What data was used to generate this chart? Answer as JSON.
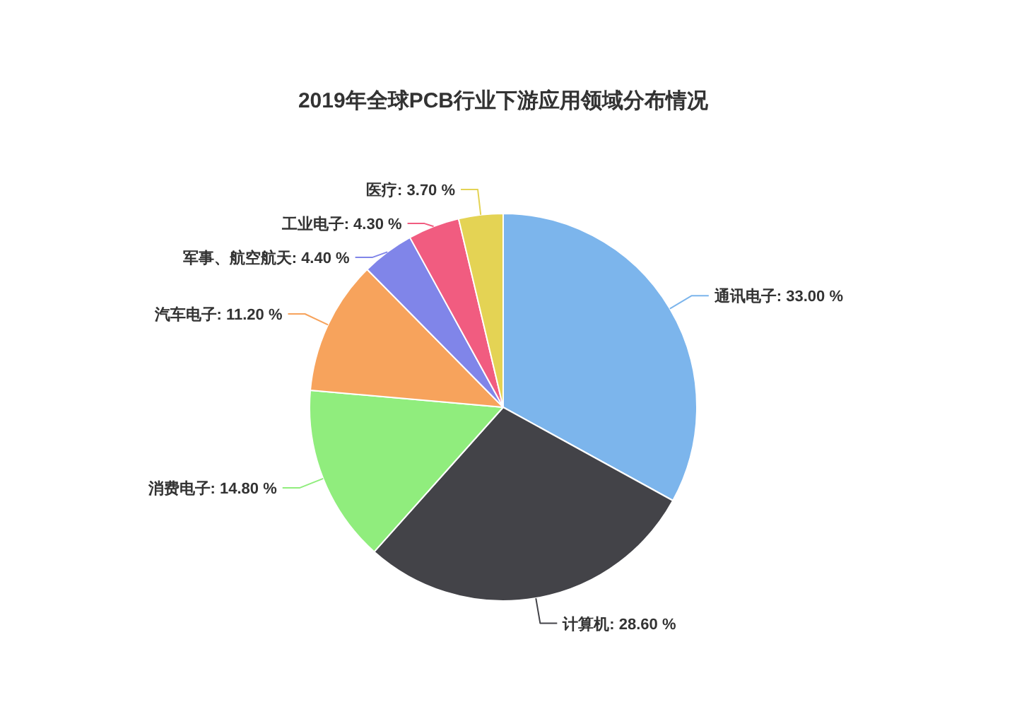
{
  "chart_data": {
    "type": "pie",
    "title": "2019年全球PCB行业下游应用领域分布情况",
    "categories": [
      "通讯电子",
      "计算机",
      "消费电子",
      "汽车电子",
      "军事、航空航天",
      "工业电子",
      "医疗"
    ],
    "values": [
      33.0,
      28.6,
      14.8,
      11.2,
      4.4,
      4.3,
      3.7
    ],
    "value_labels": [
      "33.00 %",
      "28.60 %",
      "14.80 %",
      "11.20 %",
      "4.40 %",
      "4.30 %",
      "3.70 %"
    ],
    "colors": [
      "#7cb5ec",
      "#434348",
      "#90ed7d",
      "#f7a35c",
      "#8085e9",
      "#f15c80",
      "#e4d354"
    ]
  }
}
